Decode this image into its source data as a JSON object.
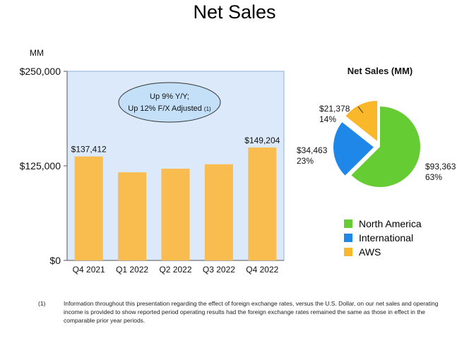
{
  "title": "Net Sales",
  "chart_data": [
    {
      "type": "bar",
      "title": "",
      "unit_label": "MM",
      "categories": [
        "Q4 2021",
        "Q1 2022",
        "Q2 2022",
        "Q3 2022",
        "Q4 2022"
      ],
      "values": [
        137412,
        116444,
        121234,
        127101,
        149204
      ],
      "data_labels": [
        "$137,412",
        "",
        "",
        "",
        "$149,204"
      ],
      "y_ticks": [
        0,
        125000,
        250000
      ],
      "y_tick_labels": [
        "$0",
        "$125,000",
        "$250,000"
      ],
      "ylim": [
        0,
        250000
      ],
      "bar_color": "#F9BC4F",
      "plot_bg": "#DCE9FA",
      "callout": {
        "line1": "Up 9% Y/Y;",
        "line2": "Up 12% F/X Adjusted",
        "footnote_ref": "(1)",
        "fill": "#C4E0F8"
      }
    },
    {
      "type": "pie",
      "title": "Net Sales (MM)",
      "slices": [
        {
          "name": "North America",
          "value": 93363,
          "amount_label": "$93,363",
          "percent_label": "63%",
          "color": "#66CC33"
        },
        {
          "name": "International",
          "value": 34463,
          "amount_label": "$34,463",
          "percent_label": "23%",
          "color": "#1F87E8"
        },
        {
          "name": "AWS",
          "value": 21378,
          "amount_label": "$21,378",
          "percent_label": "14%",
          "color": "#F9B829"
        }
      ]
    }
  ],
  "footnote": {
    "marker": "(1)",
    "text": "Information throughout this presentation regarding the effect of foreign exchange rates, versus the U.S. Dollar, on our net sales and operating income is provided to show reported period operating results had the foreign exchange rates remained the same as those in effect in the comparable prior year periods."
  }
}
